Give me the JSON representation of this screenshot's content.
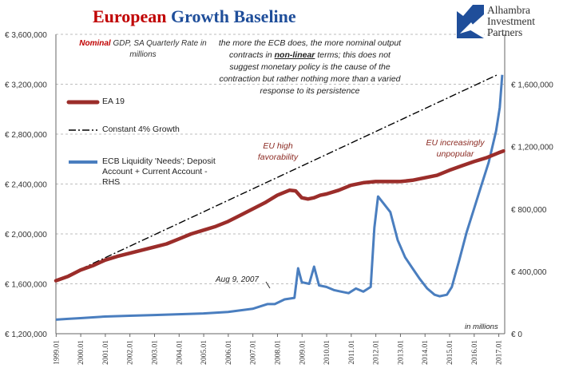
{
  "title": {
    "part1": "European",
    "part2": "Growth Baseline"
  },
  "logo": {
    "line1": "Alhambra",
    "line2": "Investment",
    "line3": "Partners"
  },
  "subtitle": {
    "bold": "Nominal",
    "rest": " GDP, SA Quarterly Rate in millions"
  },
  "note": {
    "pre": "the more the ECB does, the more nominal output contracts in ",
    "emph": "non-linear",
    "post": " terms; this does not suggest monetary policy is the cause of the contraction but rather nothing more than a varied response to its persistence"
  },
  "annotations": {
    "eu_high": "EU high favorability",
    "eu_unpopular": "EU increasingly unpopular",
    "aug": "Aug 9, 2007",
    "in_millions": "in millions"
  },
  "colors": {
    "gdp": "#9b2d2a",
    "trend": "#000000",
    "ecb": "#4a7ebf",
    "grid": "#bdbdbd"
  },
  "chart_data": {
    "type": "line",
    "x_ticks": [
      "1999.01",
      "2000.01",
      "2001.01",
      "2002.01",
      "2003.01",
      "2004.01",
      "2005.01",
      "2006.01",
      "2007.01",
      "2008.01",
      "2009.01",
      "2010.01",
      "2011.01",
      "2012.01",
      "2013.01",
      "2014.01",
      "2015.01",
      "2016.01",
      "2017.01"
    ],
    "y_left": {
      "ticks": [
        "€ 1,200,000",
        "€ 1,600,000",
        "€ 2,000,000",
        "€ 2,400,000",
        "€ 2,800,000",
        "€ 3,200,000",
        "€ 3,600,000"
      ],
      "min": 1200000,
      "max": 3600000
    },
    "y_right": {
      "ticks": [
        "€ 0",
        "€ 400,000",
        "€ 800,000",
        "€ 1,200,000",
        "€ 1,600,000"
      ],
      "min": 0,
      "max": 1920000
    },
    "series": [
      {
        "name": "EA 19",
        "axis": "left",
        "x": [
          1999.0,
          1999.5,
          2000.0,
          2000.5,
          2001.0,
          2001.5,
          2002.0,
          2002.5,
          2003.0,
          2003.5,
          2004.0,
          2004.5,
          2005.0,
          2005.5,
          2006.0,
          2006.5,
          2007.0,
          2007.5,
          2008.0,
          2008.25,
          2008.5,
          2008.75,
          2009.0,
          2009.25,
          2009.5,
          2009.75,
          2010.0,
          2010.5,
          2011.0,
          2011.5,
          2012.0,
          2012.5,
          2013.0,
          2013.5,
          2014.0,
          2014.5,
          2015.0,
          2015.5,
          2016.0,
          2016.5,
          2017.0,
          2017.2
        ],
        "values": [
          1625000,
          1660000,
          1710000,
          1745000,
          1790000,
          1820000,
          1845000,
          1870000,
          1895000,
          1920000,
          1960000,
          2000000,
          2030000,
          2060000,
          2100000,
          2150000,
          2200000,
          2250000,
          2310000,
          2330000,
          2350000,
          2345000,
          2290000,
          2280000,
          2290000,
          2310000,
          2320000,
          2350000,
          2390000,
          2410000,
          2420000,
          2420000,
          2420000,
          2430000,
          2450000,
          2470000,
          2510000,
          2545000,
          2580000,
          2610000,
          2650000,
          2665000
        ]
      },
      {
        "name": "Constant 4% Growth",
        "axis": "left",
        "x": [
          1999.0,
          2017.0
        ],
        "values": [
          1625000,
          3280000
        ]
      },
      {
        "name": "ECB Liquidity 'Needs'; Deposit Account + Current Account - RHS",
        "axis": "right",
        "x": [
          1999.0,
          1999.5,
          2000.0,
          2001.0,
          2002.0,
          2003.0,
          2004.0,
          2005.0,
          2006.0,
          2006.5,
          2007.0,
          2007.6,
          2007.9,
          2008.3,
          2008.7,
          2008.85,
          2009.0,
          2009.3,
          2009.5,
          2009.7,
          2010.0,
          2010.3,
          2010.6,
          2010.9,
          2011.2,
          2011.5,
          2011.8,
          2011.95,
          2012.1,
          2012.3,
          2012.6,
          2012.9,
          2013.2,
          2013.5,
          2013.8,
          2014.1,
          2014.4,
          2014.6,
          2014.9,
          2015.1,
          2015.4,
          2015.7,
          2016.0,
          2016.3,
          2016.6,
          2016.9,
          2017.05,
          2017.15
        ],
        "values": [
          90000,
          95000,
          100000,
          110000,
          115000,
          120000,
          125000,
          130000,
          140000,
          150000,
          160000,
          190000,
          190000,
          220000,
          230000,
          420000,
          330000,
          320000,
          430000,
          310000,
          300000,
          280000,
          270000,
          260000,
          290000,
          270000,
          300000,
          680000,
          880000,
          840000,
          780000,
          600000,
          490000,
          420000,
          350000,
          290000,
          250000,
          240000,
          250000,
          300000,
          470000,
          650000,
          800000,
          950000,
          1100000,
          1300000,
          1450000,
          1660000
        ]
      }
    ]
  }
}
